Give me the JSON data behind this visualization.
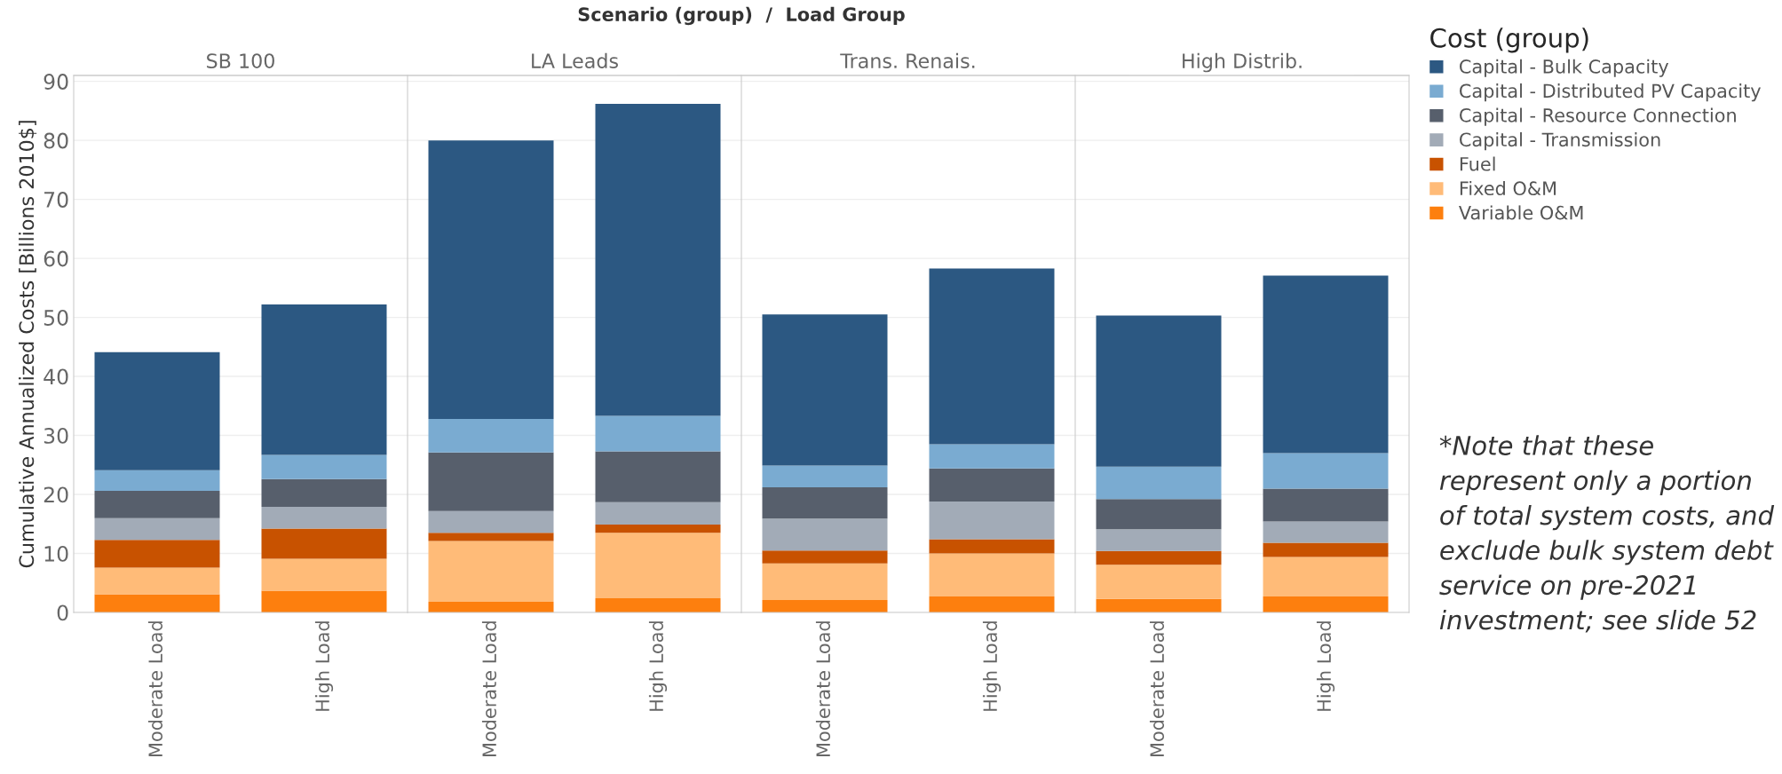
{
  "chart_data": [
    {
      "type": "bar",
      "title": "SB 100",
      "ylabel": "Cumulative Annualized Costs [Billions 2010$]",
      "annotations": [
        "Scenario (group)  /  Load Group"
      ],
      "categories": [
        "Moderate Load",
        "High Load"
      ],
      "stacked": true,
      "ylim": [
        0,
        91
      ],
      "yticks": [
        0,
        10,
        20,
        30,
        40,
        50,
        60,
        70,
        80,
        90
      ],
      "grid": "y",
      "series": [
        {
          "color": "#fd7f0e",
          "values": [
            3.1,
            3.7
          ]
        },
        {
          "color": "#ffbb78",
          "values": [
            4.5,
            5.4
          ]
        },
        {
          "color": "#c85200",
          "values": [
            4.7,
            5.1
          ]
        },
        {
          "color": "#a2abb7",
          "values": [
            3.7,
            3.7
          ]
        },
        {
          "color": "#575f6c",
          "values": [
            4.6,
            4.7
          ]
        },
        {
          "color": "#7aabd1",
          "values": [
            3.5,
            4.1
          ]
        },
        {
          "color": "#2c5882",
          "values": [
            20.0,
            25.5
          ]
        }
      ]
    },
    {
      "type": "bar",
      "title": "LA Leads",
      "categories": [
        "Moderate Load",
        "High Load"
      ],
      "stacked": true,
      "ylim": [
        0,
        91
      ],
      "yticks": [
        0,
        10,
        20,
        30,
        40,
        50,
        60,
        70,
        80,
        90
      ],
      "grid": "y",
      "tick_labels": "x",
      "series": [
        {
          "color": "#fd7f0e",
          "values": [
            1.8,
            2.4
          ]
        },
        {
          "color": "#ffbb78",
          "values": [
            10.3,
            11.1
          ]
        },
        {
          "color": "#c85200",
          "values": [
            1.4,
            1.4
          ]
        },
        {
          "color": "#a2abb7",
          "values": [
            3.7,
            3.8
          ]
        },
        {
          "color": "#575f6c",
          "values": [
            9.9,
            8.6
          ]
        },
        {
          "color": "#7aabd1",
          "values": [
            5.7,
            6.0
          ]
        },
        {
          "color": "#2c5882",
          "values": [
            47.2,
            52.9
          ]
        }
      ]
    },
    {
      "type": "bar",
      "title": "Trans. Renais.",
      "categories": [
        "Moderate Load",
        "High Load"
      ],
      "stacked": true,
      "ylim": [
        0,
        91
      ],
      "yticks": [
        0,
        10,
        20,
        30,
        40,
        50,
        60,
        70,
        80,
        90
      ],
      "grid": "y",
      "tick_labels": "x",
      "series": [
        {
          "color": "#fd7f0e",
          "values": [
            2.1,
            2.7
          ]
        },
        {
          "color": "#ffbb78",
          "values": [
            6.2,
            7.3
          ]
        },
        {
          "color": "#c85200",
          "values": [
            2.2,
            2.4
          ]
        },
        {
          "color": "#a2abb7",
          "values": [
            5.4,
            6.4
          ]
        },
        {
          "color": "#575f6c",
          "values": [
            5.3,
            5.6
          ]
        },
        {
          "color": "#7aabd1",
          "values": [
            3.7,
            4.1
          ]
        },
        {
          "color": "#2c5882",
          "values": [
            25.6,
            29.8
          ]
        }
      ]
    },
    {
      "type": "bar",
      "title": "High Distrib.",
      "legend_title": "Cost (group)",
      "legend": "right",
      "annotations": [
        "*Note that these represent only a portion of total system costs, and exclude bulk system debt service on pre-2021 investment; see slide 52"
      ],
      "categories": [
        "Moderate Load",
        "High Load"
      ],
      "stacked": true,
      "ylim": [
        0,
        91
      ],
      "yticks": [
        0,
        10,
        20,
        30,
        40,
        50,
        60,
        70,
        80,
        90
      ],
      "grid": "y",
      "tick_labels": "x",
      "series": [
        {
          "name": "Variable O&M",
          "color": "#fd7f0e",
          "values": [
            2.3,
            2.7
          ]
        },
        {
          "name": "Fixed O&M",
          "color": "#ffbb78",
          "values": [
            5.8,
            6.7
          ]
        },
        {
          "name": "Fuel",
          "color": "#c85200",
          "values": [
            2.3,
            2.4
          ]
        },
        {
          "name": "Capital - Transmission",
          "color": "#a2abb7",
          "values": [
            3.7,
            3.6
          ]
        },
        {
          "name": "Capital - Resource Connection",
          "color": "#575f6c",
          "values": [
            5.1,
            5.6
          ]
        },
        {
          "name": "Capital - Distributed PV Capacity",
          "color": "#7aabd1",
          "values": [
            5.5,
            6.0
          ]
        },
        {
          "name": "Capital - Bulk Capacity",
          "color": "#2c5882",
          "values": [
            25.6,
            30.1
          ]
        }
      ]
    }
  ]
}
